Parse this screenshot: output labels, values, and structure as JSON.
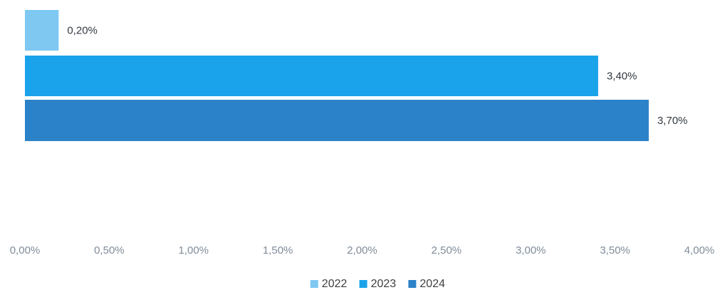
{
  "chart_data": {
    "type": "bar",
    "orientation": "horizontal",
    "title": "",
    "xlabel": "",
    "ylabel": "",
    "xlim": [
      0,
      4
    ],
    "x_ticks": [
      0,
      0.5,
      1,
      1.5,
      2,
      2.5,
      3,
      3.5,
      4
    ],
    "x_tick_labels": [
      "0,00%",
      "0,50%",
      "1,00%",
      "1,50%",
      "2,00%",
      "2,50%",
      "3,00%",
      "3,50%",
      "4,00%"
    ],
    "grid": false,
    "legend_position": "bottom",
    "series": [
      {
        "name": "2022",
        "value": 0.2,
        "label": "0,20%",
        "color": "#7ec8f2"
      },
      {
        "name": "2023",
        "value": 3.4,
        "label": "3,40%",
        "color": "#1aa3ea"
      },
      {
        "name": "2024",
        "value": 3.7,
        "label": "3,70%",
        "color": "#2c82c9"
      }
    ]
  }
}
